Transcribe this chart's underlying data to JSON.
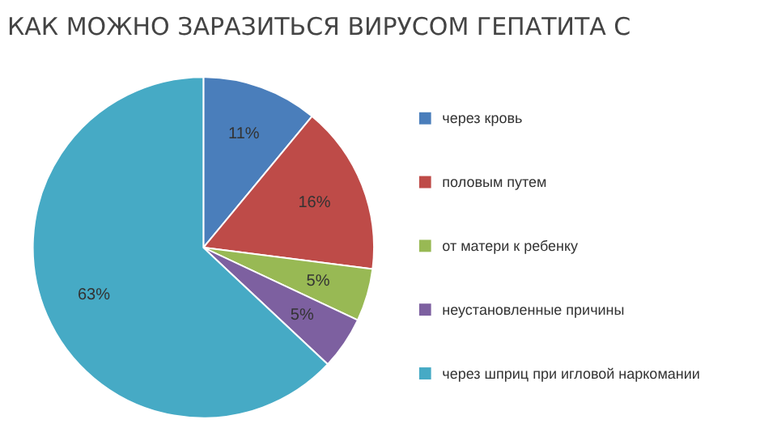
{
  "chart_data": {
    "type": "pie",
    "title": "КАК МОЖНО ЗАРАЗИТЬСЯ ВИРУСОМ ГЕПАТИТА С",
    "categories": [
      "через кровь",
      "половым путем",
      "от матери к ребенку",
      "неустановленные причины",
      "через шприц при игловой наркомании"
    ],
    "values": [
      11,
      16,
      5,
      5,
      63
    ],
    "colors": [
      "#4a7ebb",
      "#be4b48",
      "#98b954",
      "#7d60a0",
      "#46aac5"
    ],
    "value_labels": [
      "11%",
      "16%",
      "5%",
      "5%",
      "63%"
    ],
    "legend": "right"
  }
}
